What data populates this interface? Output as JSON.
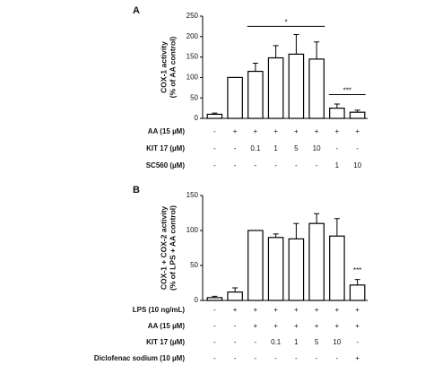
{
  "chart_data": [
    {
      "type": "bar",
      "panel": "A",
      "y_label": [
        "COX-1 activity",
        "(% of AA control)"
      ],
      "ylim": [
        0,
        250
      ],
      "yticks": [
        0,
        50,
        100,
        150,
        200,
        250
      ],
      "color": "#ffffff",
      "series": [
        {
          "values": [
            10,
            100,
            115,
            148,
            157,
            145,
            25,
            15
          ],
          "errors": [
            3,
            0,
            20,
            30,
            48,
            42,
            10,
            5
          ]
        }
      ],
      "annotations": [
        {
          "text": "*",
          "y": 225
        },
        {
          "text": "***",
          "y": 58
        }
      ],
      "rows": [
        {
          "label": "AA (15 µM)",
          "values": [
            "-",
            "+",
            "+",
            "+",
            "+",
            "+",
            "+",
            "+"
          ]
        },
        {
          "label": "KIT 17 (µM)",
          "values": [
            "-",
            "-",
            "0.1",
            "1",
            "5",
            "10",
            "-",
            "-"
          ]
        },
        {
          "label": "SC560 (µM)",
          "values": [
            "-",
            "-",
            "-",
            "-",
            "-",
            "-",
            "1",
            "10"
          ]
        }
      ]
    },
    {
      "type": "bar",
      "panel": "B",
      "y_label": [
        "COX-1 + COX-2 activity",
        "(% of LPS + AA control)"
      ],
      "ylim": [
        0,
        150
      ],
      "yticks": [
        0,
        50,
        100,
        150
      ],
      "color": "#ffffff",
      "series": [
        {
          "values": [
            4,
            12,
            100,
            90,
            88,
            110,
            92,
            22
          ],
          "errors": [
            2,
            6,
            0,
            5,
            22,
            14,
            25,
            8
          ]
        }
      ],
      "annotations": [
        {
          "text": "***",
          "y": 37
        }
      ],
      "rows": [
        {
          "label": "LPS (10 ng/mL)",
          "values": [
            "-",
            "+",
            "+",
            "+",
            "+",
            "+",
            "+",
            "+"
          ]
        },
        {
          "label": "AA (15 µM)",
          "values": [
            "-",
            "-",
            "+",
            "+",
            "+",
            "+",
            "+",
            "+"
          ]
        },
        {
          "label": "KIT 17 (µM)",
          "values": [
            "-",
            "-",
            "-",
            "0.1",
            "1",
            "5",
            "10",
            "-"
          ]
        },
        {
          "label": "Diclofenac sodium (10 µM)",
          "values": [
            "-",
            "-",
            "-",
            "-",
            "-",
            "-",
            "-",
            "+"
          ]
        }
      ]
    }
  ]
}
